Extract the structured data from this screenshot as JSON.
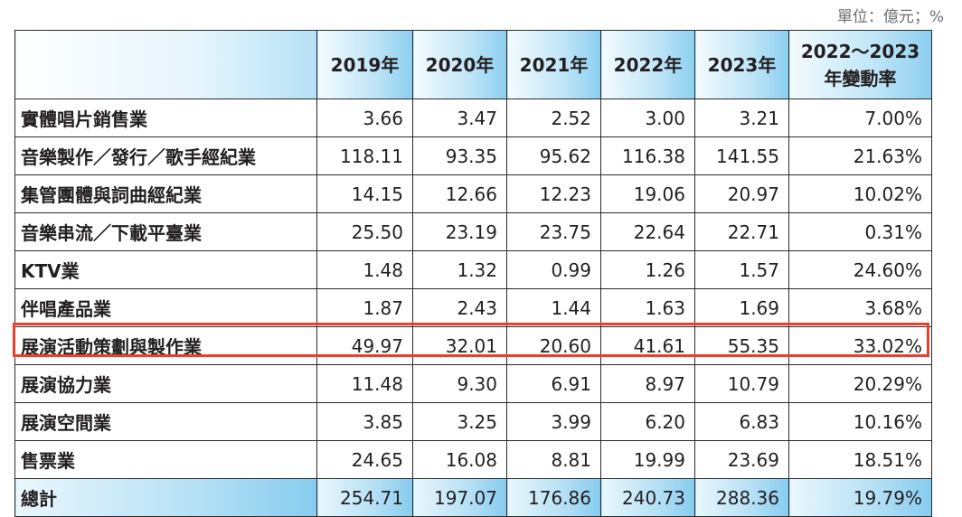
{
  "unit_note": "單位：億元；%",
  "chart_data": {
    "type": "table",
    "columns": [
      "",
      "2019年",
      "2020年",
      "2021年",
      "2022年",
      "2023年",
      "2022～2023\n年變動率"
    ],
    "rows": [
      {
        "label": "實體唱片銷售業",
        "values": [
          "3.66",
          "3.47",
          "2.52",
          "3.00",
          "3.21",
          "7.00%"
        ]
      },
      {
        "label": "音樂製作／發行／歌手經紀業",
        "values": [
          "118.11",
          "93.35",
          "95.62",
          "116.38",
          "141.55",
          "21.63%"
        ]
      },
      {
        "label": "集管團體與詞曲經紀業",
        "values": [
          "14.15",
          "12.66",
          "12.23",
          "19.06",
          "20.97",
          "10.02%"
        ]
      },
      {
        "label": "音樂串流／下載平臺業",
        "values": [
          "25.50",
          "23.19",
          "23.75",
          "22.64",
          "22.71",
          "0.31%"
        ]
      },
      {
        "label": "KTV業",
        "values": [
          "1.48",
          "1.32",
          "0.99",
          "1.26",
          "1.57",
          "24.60%"
        ]
      },
      {
        "label": "伴唱產品業",
        "values": [
          "1.87",
          "2.43",
          "1.44",
          "1.63",
          "1.69",
          "3.68%"
        ]
      },
      {
        "label": "展演活動策劃與製作業",
        "values": [
          "49.97",
          "32.01",
          "20.60",
          "41.61",
          "55.35",
          "33.02%"
        ]
      },
      {
        "label": "展演協力業",
        "values": [
          "11.48",
          "9.30",
          "6.91",
          "8.97",
          "10.79",
          "20.29%"
        ]
      },
      {
        "label": "展演空間業",
        "values": [
          "3.85",
          "3.25",
          "3.99",
          "6.20",
          "6.83",
          "10.16%"
        ]
      },
      {
        "label": "售票業",
        "values": [
          "24.65",
          "16.08",
          "8.81",
          "19.99",
          "23.69",
          "18.51%"
        ]
      }
    ],
    "total": {
      "label": "總計",
      "values": [
        "254.71",
        "197.07",
        "176.86",
        "240.73",
        "288.36",
        "19.79%"
      ]
    },
    "highlighted_row": "展演活動策劃與製作業",
    "colors": {
      "header_gradient_start": "#f4fbfe",
      "header_gradient_end": "#8ccff0",
      "highlight_border": "#e8402b",
      "grid": "#2b2b2b"
    }
  }
}
